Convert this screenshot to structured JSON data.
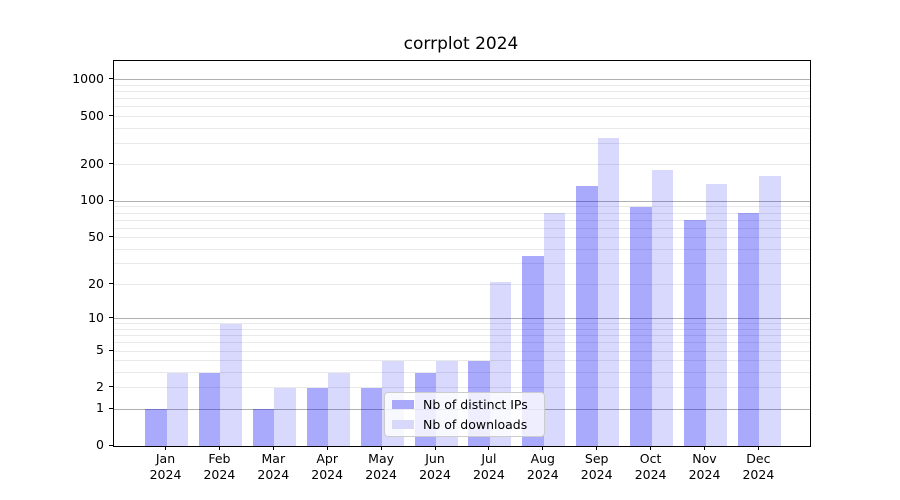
{
  "chart_data": {
    "type": "bar",
    "title": "corrplot 2024",
    "categories": [
      "Jan",
      "Feb",
      "Mar",
      "Apr",
      "May",
      "Jun",
      "Jul",
      "Aug",
      "Sep",
      "Oct",
      "Nov",
      "Dec"
    ],
    "category_year": "2024",
    "series": [
      {
        "name": "Nb of distinct IPs",
        "color": "rgba(0,0,250,0.335)",
        "legend_color": "#a9a9fa",
        "values": [
          1,
          3,
          1,
          2,
          2,
          3,
          4,
          35,
          135,
          90,
          70,
          80
        ]
      },
      {
        "name": "Nb of downloads",
        "color": "rgba(0,0,250,0.15)",
        "legend_color": "#d8d8fa",
        "values": [
          3,
          9,
          2,
          3,
          4,
          4,
          21,
          80,
          335,
          180,
          140,
          163
        ]
      }
    ],
    "xlabel": "",
    "ylabel": "",
    "yscale": "log1p",
    "ylim": [
      0,
      1430
    ],
    "yticks": [
      0,
      1,
      2,
      5,
      10,
      20,
      50,
      100,
      200,
      500,
      1000
    ],
    "grid": {
      "major_values": [
        1,
        10,
        100,
        1000
      ],
      "minor_values": [
        2,
        3,
        4,
        5,
        6,
        7,
        8,
        9,
        20,
        30,
        40,
        50,
        60,
        70,
        80,
        90,
        200,
        300,
        400,
        500,
        600,
        700,
        800,
        900
      ],
      "major_color": "#b0b0b0",
      "minor_color": "#e9e9e9"
    },
    "legend_position": "lower center"
  }
}
